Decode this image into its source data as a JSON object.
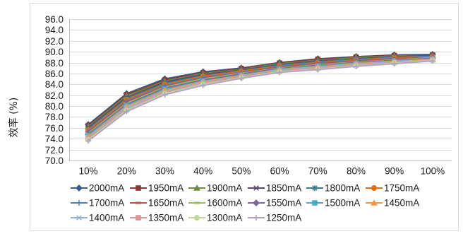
{
  "chart_data": {
    "type": "line",
    "ylabel": "效率 (%)",
    "categories": [
      "10%",
      "20%",
      "30%",
      "40%",
      "50%",
      "60%",
      "70%",
      "80%",
      "90%",
      "100%"
    ],
    "ylim": [
      70,
      96
    ],
    "y_tick_labels": [
      "70.0",
      "72.0",
      "74.0",
      "76.0",
      "78.0",
      "80.0",
      "82.0",
      "84.0",
      "86.0",
      "88.0",
      "90.0",
      "92.0",
      "94.0",
      "96.0"
    ],
    "grid": true,
    "legend_position": "bottom",
    "series": [
      {
        "name": "2000mA",
        "color": "#385D8A",
        "marker": "diamond",
        "values": [
          76.6,
          82.3,
          85.0,
          86.3,
          87.0,
          88.0,
          88.7,
          89.1,
          89.4,
          89.5
        ]
      },
      {
        "name": "1950mA",
        "color": "#8C3836",
        "marker": "square",
        "values": [
          76.4,
          82.1,
          84.8,
          86.1,
          86.9,
          87.9,
          88.6,
          89.0,
          89.3,
          89.4
        ]
      },
      {
        "name": "1900mA",
        "color": "#71893F",
        "marker": "triangle",
        "values": [
          76.2,
          81.9,
          84.6,
          86.0,
          86.7,
          87.8,
          88.4,
          88.9,
          89.2,
          89.3
        ]
      },
      {
        "name": "1850mA",
        "color": "#5C4776",
        "marker": "x",
        "values": [
          76.0,
          81.6,
          84.4,
          85.8,
          86.6,
          87.6,
          88.3,
          88.7,
          89.1,
          89.3
        ]
      },
      {
        "name": "1800mA",
        "color": "#357D91",
        "marker": "star",
        "values": [
          75.8,
          81.4,
          84.2,
          85.6,
          86.5,
          87.5,
          88.2,
          88.6,
          89.0,
          89.2
        ]
      },
      {
        "name": "1750mA",
        "color": "#E46C0A",
        "marker": "circle",
        "values": [
          75.6,
          81.2,
          84.0,
          85.5,
          86.4,
          87.4,
          88.0,
          88.5,
          88.9,
          89.1
        ]
      },
      {
        "name": "1700mA",
        "color": "#4F81BD",
        "marker": "plus",
        "values": [
          75.4,
          81.0,
          83.8,
          85.3,
          86.2,
          87.3,
          87.9,
          88.4,
          88.8,
          89.0
        ]
      },
      {
        "name": "1650mA",
        "color": "#C0504D",
        "marker": "dash",
        "values": [
          75.2,
          80.8,
          83.6,
          85.1,
          86.1,
          87.2,
          87.8,
          88.3,
          88.7,
          88.9
        ]
      },
      {
        "name": "1600mA",
        "color": "#9BBB59",
        "marker": "dash",
        "values": [
          75.0,
          80.5,
          83.5,
          85.0,
          86.0,
          87.0,
          87.6,
          88.1,
          88.5,
          88.9
        ]
      },
      {
        "name": "1550mA",
        "color": "#8064A2",
        "marker": "diamond",
        "values": [
          74.8,
          80.3,
          83.3,
          84.8,
          85.9,
          86.9,
          87.5,
          88.0,
          88.4,
          88.8
        ]
      },
      {
        "name": "1500mA",
        "color": "#4BACC6",
        "marker": "square",
        "values": [
          74.6,
          80.1,
          83.1,
          84.6,
          85.7,
          86.8,
          87.4,
          87.9,
          88.3,
          88.7
        ]
      },
      {
        "name": "1450mA",
        "color": "#F79646",
        "marker": "triangle",
        "values": [
          74.4,
          79.9,
          82.9,
          84.5,
          85.6,
          86.7,
          87.2,
          87.8,
          88.2,
          88.6
        ]
      },
      {
        "name": "1400mA",
        "color": "#95B3D7",
        "marker": "x",
        "values": [
          74.2,
          79.7,
          82.7,
          84.3,
          85.5,
          86.6,
          87.1,
          87.7,
          88.1,
          88.5
        ]
      },
      {
        "name": "1350mA",
        "color": "#D99694",
        "marker": "square",
        "values": [
          74.0,
          79.4,
          82.5,
          84.1,
          85.4,
          86.4,
          87.0,
          87.5,
          88.0,
          88.5
        ]
      },
      {
        "name": "1300mA",
        "color": "#C3D69B",
        "marker": "circle",
        "values": [
          73.8,
          79.2,
          82.3,
          84.0,
          85.2,
          86.3,
          86.8,
          87.4,
          87.9,
          88.4
        ]
      },
      {
        "name": "1250mA",
        "color": "#B3A2C7",
        "marker": "plus",
        "values": [
          73.6,
          79.0,
          82.1,
          83.8,
          85.1,
          86.2,
          86.7,
          87.3,
          87.8,
          88.3
        ]
      }
    ]
  }
}
